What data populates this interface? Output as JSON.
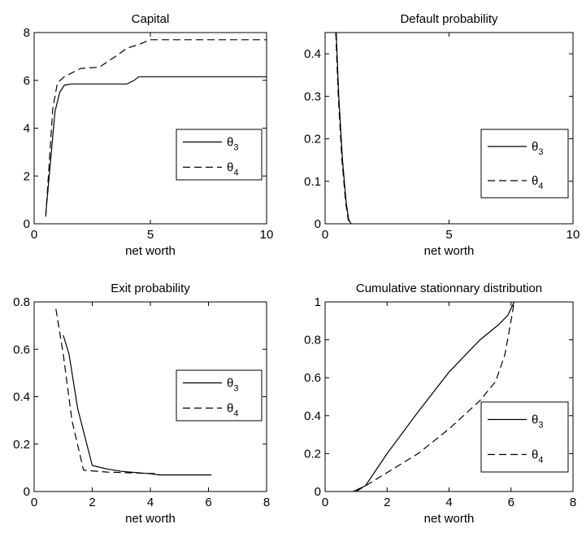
{
  "chart_data": [
    {
      "type": "line",
      "title": "Capital",
      "xlabel": "net worth",
      "ylabel": "",
      "xlim": [
        0,
        10
      ],
      "ylim": [
        0,
        8
      ],
      "xticks": [
        "0",
        "5",
        "10"
      ],
      "yticks": [
        "0",
        "2",
        "4",
        "6",
        "8"
      ],
      "legend": {
        "position": "lower-right",
        "entries": [
          "θ3",
          "θ4"
        ]
      },
      "series": [
        {
          "name": "θ3",
          "style": "solid",
          "x": [
            0.5,
            0.9,
            1.1,
            1.3,
            1.6,
            2.5,
            3.5,
            4.0,
            4.3,
            4.5,
            5.0,
            10.0
          ],
          "y": [
            0.4,
            4.7,
            5.5,
            5.8,
            5.85,
            5.85,
            5.85,
            5.85,
            6.0,
            6.15,
            6.15,
            6.15
          ]
        },
        {
          "name": "θ4",
          "style": "dashed",
          "x": [
            0.5,
            0.8,
            1.0,
            1.3,
            2.0,
            2.8,
            3.5,
            4.0,
            4.5,
            5.0,
            10.0
          ],
          "y": [
            0.3,
            4.8,
            5.9,
            6.15,
            6.5,
            6.55,
            7.0,
            7.35,
            7.5,
            7.7,
            7.7
          ]
        }
      ]
    },
    {
      "type": "line",
      "title": "Default probability",
      "xlabel": "net worth",
      "ylabel": "",
      "xlim": [
        0,
        10
      ],
      "ylim": [
        0,
        0.45
      ],
      "xticks": [
        "0",
        "5",
        "10"
      ],
      "yticks": [
        "0",
        "0.1",
        "0.2",
        "0.3",
        "0.4"
      ],
      "legend": {
        "position": "lower-right",
        "entries": [
          "θ3",
          "θ4"
        ]
      },
      "series": [
        {
          "name": "θ3",
          "style": "solid",
          "x": [
            0.45,
            0.55,
            0.7,
            0.85,
            0.95,
            1.05
          ],
          "y": [
            0.45,
            0.3,
            0.15,
            0.05,
            0.01,
            0.0
          ]
        },
        {
          "name": "θ4",
          "style": "dashed",
          "x": [
            0.43,
            0.53,
            0.68,
            0.83,
            0.93,
            1.03
          ],
          "y": [
            0.45,
            0.3,
            0.15,
            0.05,
            0.01,
            0.0
          ]
        }
      ]
    },
    {
      "type": "line",
      "title": "Exit probability",
      "xlabel": "net worth",
      "ylabel": "",
      "xlim": [
        0,
        8
      ],
      "ylim": [
        0,
        0.8
      ],
      "xticks": [
        "0",
        "2",
        "4",
        "6",
        "8"
      ],
      "yticks": [
        "0",
        "0.2",
        "0.4",
        "0.6",
        "0.8"
      ],
      "legend": {
        "position": "right",
        "entries": [
          "θ3",
          "θ4"
        ]
      },
      "series": [
        {
          "name": "θ3",
          "style": "solid",
          "x": [
            1.0,
            1.2,
            1.5,
            2.0,
            2.5,
            3.0,
            4.0,
            4.3,
            5.0,
            6.1
          ],
          "y": [
            0.66,
            0.58,
            0.35,
            0.11,
            0.095,
            0.085,
            0.075,
            0.07,
            0.07,
            0.07
          ]
        },
        {
          "name": "θ4",
          "style": "dashed",
          "x": [
            0.75,
            1.0,
            1.3,
            1.7,
            2.5,
            3.5,
            4.3
          ],
          "y": [
            0.77,
            0.58,
            0.3,
            0.09,
            0.082,
            0.078,
            0.075
          ]
        }
      ]
    },
    {
      "type": "line",
      "title": "Cumulative stationnary distribution",
      "xlabel": "net worth",
      "ylabel": "",
      "xlim": [
        0,
        8
      ],
      "ylim": [
        0,
        1
      ],
      "xticks": [
        "0",
        "2",
        "4",
        "6",
        "8"
      ],
      "yticks": [
        "0",
        "0.2",
        "0.4",
        "0.6",
        "0.8",
        "1"
      ],
      "legend": {
        "position": "lower-right",
        "entries": [
          "θ3",
          "θ4"
        ]
      },
      "series": [
        {
          "name": "θ3",
          "style": "solid",
          "x": [
            0.9,
            1.3,
            2.0,
            3.0,
            4.0,
            5.0,
            5.6,
            5.9,
            6.1
          ],
          "y": [
            0.0,
            0.03,
            0.2,
            0.42,
            0.63,
            0.8,
            0.88,
            0.93,
            1.0
          ]
        },
        {
          "name": "θ4",
          "style": "dashed",
          "x": [
            1.0,
            1.5,
            2.0,
            3.0,
            4.0,
            5.0,
            5.5,
            5.8,
            6.0,
            6.1
          ],
          "y": [
            0.0,
            0.05,
            0.1,
            0.2,
            0.33,
            0.48,
            0.58,
            0.72,
            0.9,
            1.0
          ]
        }
      ]
    }
  ]
}
